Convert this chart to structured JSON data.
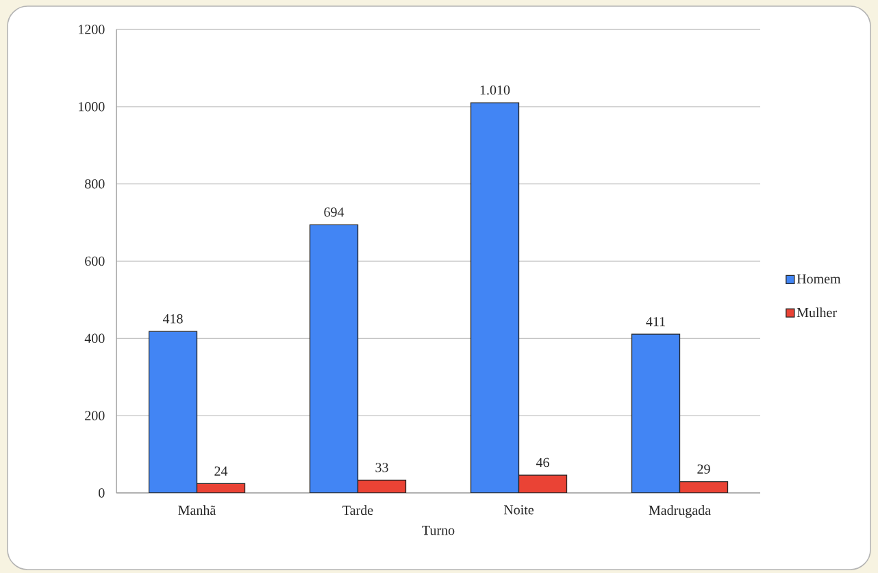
{
  "chart_data": {
    "type": "bar",
    "categories": [
      "Manhã",
      "Tarde",
      "Noite",
      "Madrugada"
    ],
    "xlabel": "Turno",
    "series": [
      {
        "name": "Homem",
        "color": "#4285f4",
        "values": [
          418,
          694,
          1010,
          411
        ],
        "value_labels": [
          "418",
          "694",
          "1.010",
          "411"
        ]
      },
      {
        "name": "Mulher",
        "color": "#ea4335",
        "values": [
          24,
          33,
          46,
          29
        ],
        "value_labels": [
          "24",
          "33",
          "46",
          "29"
        ]
      }
    ],
    "ylim": [
      0,
      1200
    ],
    "yticks": [
      0,
      200,
      400,
      600,
      800,
      1000,
      1200
    ],
    "grid": "y",
    "legend": "right"
  }
}
